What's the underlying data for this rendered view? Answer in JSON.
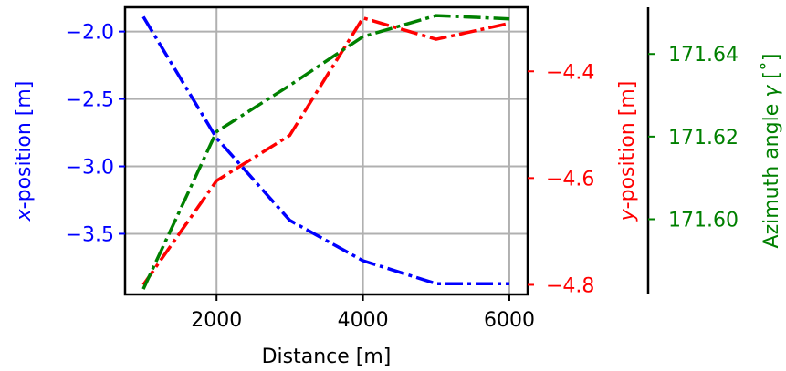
{
  "chart_data": {
    "type": "line",
    "x": [
      1000,
      2000,
      3000,
      4000,
      5000,
      6000
    ],
    "xlabel": "Distance [m]",
    "xticks": [
      2000,
      4000,
      6000
    ],
    "xtick_labels": [
      "2000",
      "4000",
      "6000"
    ],
    "xlim": [
      750,
      6250
    ],
    "grid": true,
    "axes": [
      {
        "side": "left",
        "label_prefix": "x",
        "label_suffix": "-position [m]",
        "color": "#0000ff",
        "ylim": [
          -3.95,
          -1.82
        ],
        "ticks": [
          -2.0,
          -2.5,
          -3.0,
          -3.5
        ],
        "tick_labels": [
          "−2.0",
          "−2.5",
          "−3.0",
          "−3.5"
        ]
      },
      {
        "side": "right",
        "label_prefix": "y",
        "label_suffix": "-position [m]",
        "color": "#ff0000",
        "ylim": [
          -4.818,
          -4.28
        ],
        "ticks": [
          -4.4,
          -4.6,
          -4.8
        ],
        "tick_labels": [
          "−4.4",
          "−4.6",
          "−4.8"
        ]
      },
      {
        "side": "right-offset",
        "label_text": "Azimuth angle ",
        "label_symbol": "γ",
        "label_unit": " [˚]",
        "color": "#008000",
        "ylim": [
          171.5818,
          171.6513
        ],
        "ticks": [
          171.6,
          171.62,
          171.64
        ],
        "tick_labels": [
          "171.60",
          "171.62",
          "171.64"
        ]
      }
    ],
    "series": [
      {
        "axis": 0,
        "color": "#0000ff",
        "linestyle": "dashdot",
        "values": [
          -1.89,
          -2.79,
          -3.4,
          -3.7,
          -3.87,
          -3.87
        ]
      },
      {
        "axis": 1,
        "color": "#ff0000",
        "linestyle": "dashdot",
        "values": [
          -4.8,
          -4.605,
          -4.52,
          -4.3,
          -4.34,
          -4.31
        ]
      },
      {
        "axis": 2,
        "color": "#008000",
        "linestyle": "dashdot",
        "values": [
          171.5831,
          171.6212,
          171.6324,
          171.6442,
          171.6493,
          171.6485
        ]
      }
    ]
  }
}
